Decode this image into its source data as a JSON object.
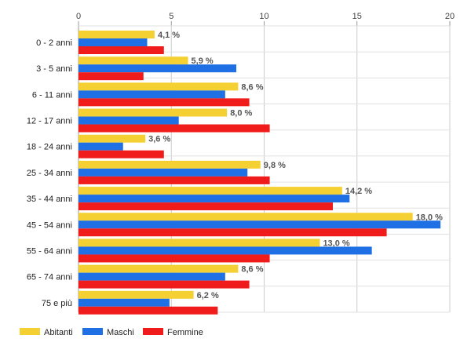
{
  "chart_data": {
    "type": "bar",
    "orientation": "horizontal",
    "categories": [
      "0 - 2 anni",
      "3 - 5 anni",
      "6 - 11 anni",
      "12 - 17 anni",
      "18 - 24 anni",
      "25 - 34 anni",
      "35 - 44 anni",
      "45 - 54 anni",
      "55 - 64 anni",
      "65 - 74 anni",
      "75 e più"
    ],
    "series": [
      {
        "name": "Abitanti",
        "color": "#f5d033",
        "values": [
          4.1,
          5.9,
          8.6,
          8.0,
          3.6,
          9.8,
          14.2,
          18.0,
          13.0,
          8.6,
          6.2
        ]
      },
      {
        "name": "Maschi",
        "color": "#1f6fe5",
        "values": [
          3.7,
          8.5,
          7.9,
          5.4,
          2.4,
          9.1,
          14.6,
          19.5,
          15.8,
          7.9,
          4.9
        ]
      },
      {
        "name": "Femmine",
        "color": "#f01c1c",
        "values": [
          4.6,
          3.5,
          9.2,
          10.3,
          4.6,
          10.3,
          13.7,
          16.6,
          10.3,
          9.2,
          7.5
        ]
      }
    ],
    "data_labels": [
      "4,1 %",
      "5,9 %",
      "8,6 %",
      "8,0 %",
      "3,6 %",
      "9,8 %",
      "14,2 %",
      "18,0 %",
      "13,0 %",
      "8,6 %",
      "6,2 %"
    ],
    "x_ticks": [
      "0",
      "5",
      "10",
      "15",
      "20"
    ],
    "xlim": [
      0,
      20
    ],
    "grid": true,
    "legend_position": "bottom-left"
  }
}
